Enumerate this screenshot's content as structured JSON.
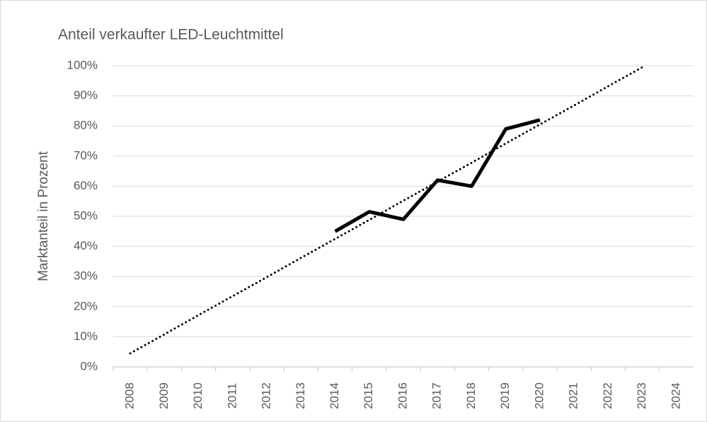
{
  "chart_data": {
    "type": "line",
    "title": "Anteil verkaufter LED-Leuchtmittel",
    "y_label": "Marktanteil in Prozent",
    "categories": [
      "2008",
      "2009",
      "2010",
      "2011",
      "2012",
      "2013",
      "2014",
      "2015",
      "2016",
      "2017",
      "2018",
      "2019",
      "2020",
      "2021",
      "2022",
      "2023",
      "2024"
    ],
    "series": [
      {
        "color": "#000000",
        "style": "solid",
        "values": [
          null,
          null,
          null,
          null,
          null,
          null,
          45,
          51.5,
          49,
          62,
          60,
          79,
          82,
          null,
          null,
          null,
          null
        ]
      },
      {
        "color": "#000000",
        "style": "dotted",
        "values": [
          4.5,
          10.8,
          17.2,
          23.5,
          29.8,
          36.2,
          42.5,
          48.8,
          55.2,
          61.5,
          67.8,
          74.2,
          80.5,
          86.8,
          93.2,
          99.5,
          null
        ]
      }
    ],
    "ylim": [
      0,
      100
    ],
    "yticks": [
      {
        "value": 0,
        "label": "0%"
      },
      {
        "value": 10,
        "label": "10%"
      },
      {
        "value": 20,
        "label": "20%"
      },
      {
        "value": 30,
        "label": "30%"
      },
      {
        "value": 40,
        "label": "40%"
      },
      {
        "value": 50,
        "label": "50%"
      },
      {
        "value": 60,
        "label": "60%"
      },
      {
        "value": 70,
        "label": "70%"
      },
      {
        "value": 80,
        "label": "80%"
      },
      {
        "value": 90,
        "label": "90%"
      },
      {
        "value": 100,
        "label": "100%"
      }
    ],
    "grid": true
  }
}
